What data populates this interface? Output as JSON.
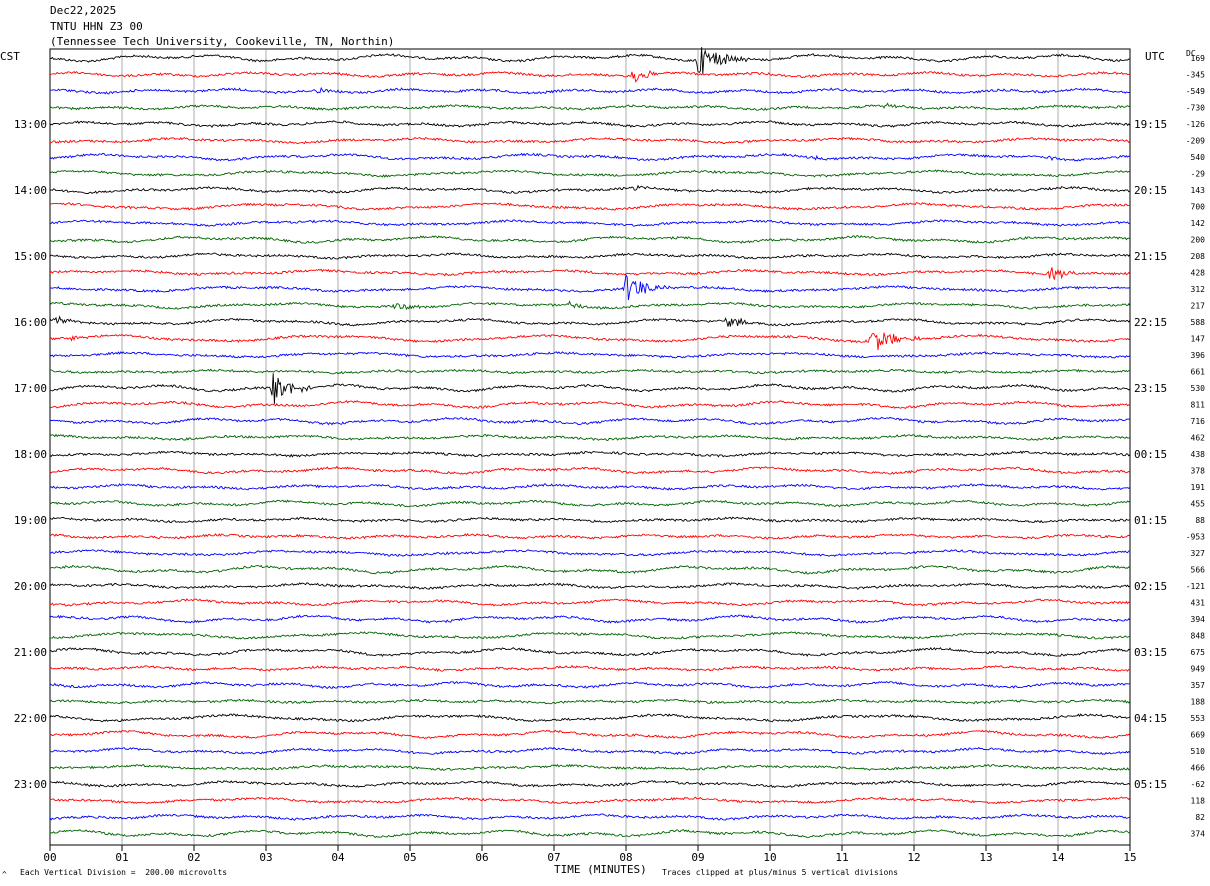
{
  "header": {
    "date": "Dec22,2025",
    "station": "TNTU HHN Z3 00",
    "location": "(Tennessee Tech University, Cookeville, TN, Northin)"
  },
  "left_timezone": "CST",
  "right_timezone": "UTC",
  "dc_label": "DC",
  "footer": {
    "xlabel": "TIME (MINUTES)",
    "scale_note": "Each Vertical Division =  200.00 microvolts",
    "clip_note": "Traces clipped at plus/minus 5 vertical divisions",
    "corner_mark": "^"
  },
  "chart_data": {
    "type": "line",
    "title": "TNTU HHN Z3 00",
    "subtitle": "(Tennessee Tech University, Cookeville, TN, Northin)",
    "xlabel": "TIME (MINUTES)",
    "xlim": [
      0,
      15
    ],
    "x_ticks": [
      "00",
      "01",
      "02",
      "03",
      "04",
      "05",
      "06",
      "07",
      "08",
      "09",
      "10",
      "11",
      "12",
      "13",
      "14",
      "15"
    ],
    "trace_colors": [
      "#000000",
      "#ff0000",
      "#0000ff",
      "#006400"
    ],
    "grid": "vertical lines each minute",
    "left_hour_labels": [
      "13:00",
      "14:00",
      "15:00",
      "16:00",
      "17:00",
      "18:00",
      "19:00",
      "20:00",
      "21:00",
      "22:00",
      "23:00"
    ],
    "right_hour_labels": [
      "19:15",
      "20:15",
      "21:15",
      "22:15",
      "23:15",
      "00:15",
      "01:15",
      "02:15",
      "03:15",
      "04:15",
      "05:15"
    ],
    "trace_count": 48,
    "dc_offsets": [
      "169",
      "-345",
      "-549",
      "-730",
      "-126",
      "-209",
      "540",
      "-29",
      "143",
      "700",
      "142",
      "200",
      "208",
      "428",
      "312",
      "217",
      "588",
      "147",
      "396",
      "661",
      "530",
      "811",
      "716",
      "462",
      "438",
      "378",
      "191",
      "455",
      "88",
      "-953",
      "327",
      "566",
      "-121",
      "431",
      "394",
      "848",
      "675",
      "949",
      "357",
      "188",
      "553",
      "669",
      "510",
      "466",
      "-62",
      "118",
      "82",
      "374"
    ],
    "events": [
      {
        "trace": 0,
        "minute": 9.0,
        "amp": 5,
        "dur": 0.7
      },
      {
        "trace": 1,
        "minute": 8.1,
        "amp": 2.2,
        "dur": 0.5
      },
      {
        "trace": 2,
        "minute": 3.7,
        "amp": 0.8,
        "dur": 0.3
      },
      {
        "trace": 3,
        "minute": 11.6,
        "amp": 0.8,
        "dur": 0.3
      },
      {
        "trace": 6,
        "minute": 10.6,
        "amp": 0.7,
        "dur": 0.3
      },
      {
        "trace": 6,
        "minute": 13.9,
        "amp": 0.9,
        "dur": 0.3
      },
      {
        "trace": 8,
        "minute": 8.1,
        "amp": 0.7,
        "dur": 0.3
      },
      {
        "trace": 9,
        "minute": 3.3,
        "amp": 0.5,
        "dur": 0.2
      },
      {
        "trace": 13,
        "minute": 13.9,
        "amp": 2.5,
        "dur": 0.4
      },
      {
        "trace": 14,
        "minute": 8.0,
        "amp": 4.5,
        "dur": 0.6
      },
      {
        "trace": 15,
        "minute": 4.8,
        "amp": 1.0,
        "dur": 0.6
      },
      {
        "trace": 15,
        "minute": 7.2,
        "amp": 1.5,
        "dur": 0.3
      },
      {
        "trace": 15,
        "minute": 15.0,
        "amp": 1.0,
        "dur": 0.2
      },
      {
        "trace": 16,
        "minute": 0.1,
        "amp": 1.3,
        "dur": 0.3
      },
      {
        "trace": 16,
        "minute": 9.4,
        "amp": 2.0,
        "dur": 0.5
      },
      {
        "trace": 17,
        "minute": 0.3,
        "amp": 0.8,
        "dur": 0.3
      },
      {
        "trace": 17,
        "minute": 3.9,
        "amp": 0.6,
        "dur": 0.3
      },
      {
        "trace": 17,
        "minute": 11.4,
        "amp": 4.0,
        "dur": 0.7
      },
      {
        "trace": 20,
        "minute": 3.1,
        "amp": 5,
        "dur": 0.5
      }
    ]
  }
}
